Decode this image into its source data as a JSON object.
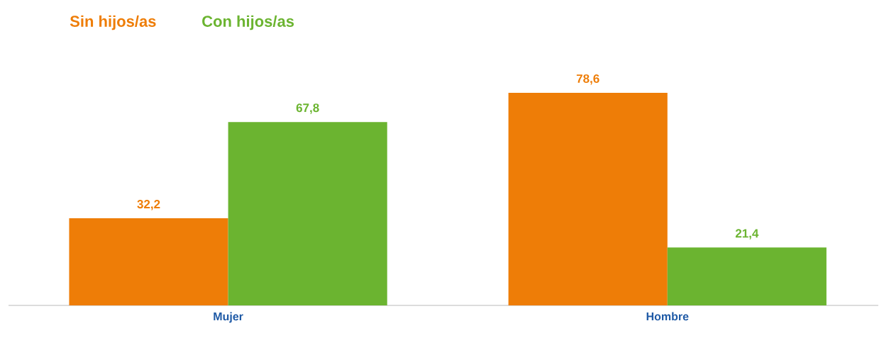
{
  "chart_data": {
    "type": "bar",
    "categories": [
      "Mujer",
      "Hombre"
    ],
    "legend": "top left",
    "series": [
      {
        "name": "Sin hijos/as",
        "color": "#ee7d07",
        "values": [
          32.2,
          78.6
        ],
        "value_labels": [
          "32,2",
          "78,6"
        ]
      },
      {
        "name": "Con hijos/as",
        "color": "#6bb430",
        "values": [
          67.8,
          21.4
        ],
        "value_labels": [
          "67,8",
          "21,4"
        ]
      }
    ]
  }
}
